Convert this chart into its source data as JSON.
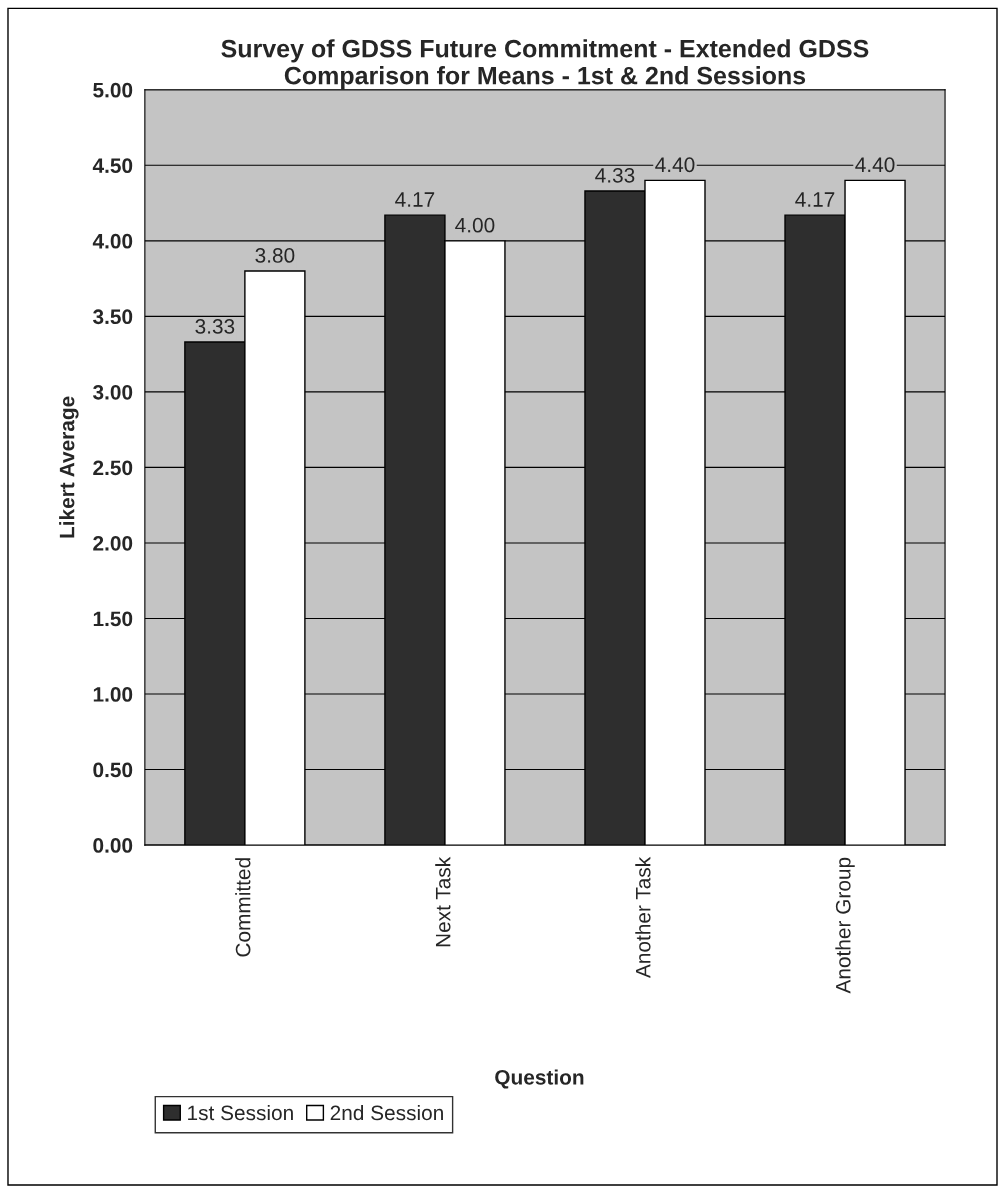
{
  "chart_data": {
    "type": "bar",
    "title": "Survey of GDSS Future Commitment - Extended GDSS\nComparison for Means - 1st & 2nd Sessions",
    "xlabel": "Question",
    "ylabel": "Likert Average",
    "categories": [
      "Committed",
      "Next Task",
      "Another Task",
      "Another Group"
    ],
    "series": [
      {
        "name": "1st Session",
        "color": "#2e2e2e",
        "values": [
          3.33,
          4.17,
          4.33,
          4.17
        ],
        "value_labels": [
          "3.33",
          "4.17",
          "4.33",
          "4.17"
        ]
      },
      {
        "name": "2nd Session",
        "color": "#ffffff",
        "values": [
          3.8,
          4.0,
          4.4,
          4.4
        ],
        "value_labels": [
          "3.80",
          "4.00",
          "4.40",
          "4.40"
        ]
      }
    ],
    "ylim": [
      0,
      5
    ],
    "yticks": [
      {
        "value": 0,
        "label": "0.00"
      },
      {
        "value": 0.5,
        "label": "0.50"
      },
      {
        "value": 1,
        "label": "1.00"
      },
      {
        "value": 1.5,
        "label": "1.50"
      },
      {
        "value": 2,
        "label": "2.00"
      },
      {
        "value": 2.5,
        "label": "2.50"
      },
      {
        "value": 3,
        "label": "3.00"
      },
      {
        "value": 3.5,
        "label": "3.50"
      },
      {
        "value": 4,
        "label": "4.00"
      },
      {
        "value": 4.5,
        "label": "4.50"
      },
      {
        "value": 5,
        "label": "5.00"
      }
    ],
    "grid": "y",
    "legend": "bottom left"
  }
}
